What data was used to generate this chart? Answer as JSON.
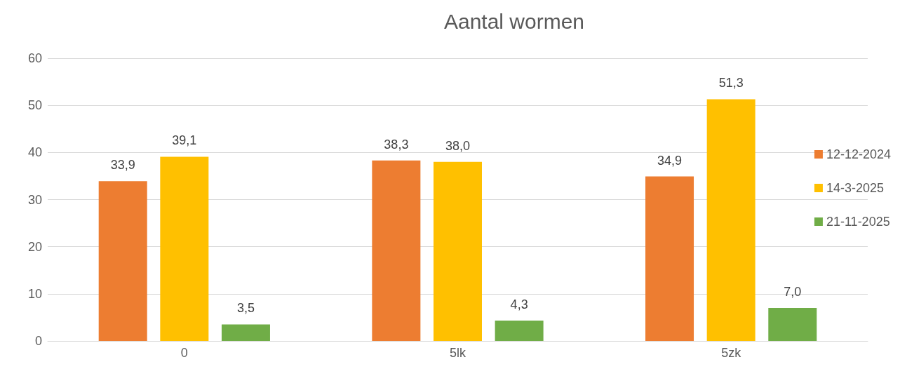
{
  "chart_data": {
    "type": "bar",
    "title": "Aantal wormen",
    "categories": [
      "0",
      "5lk",
      "5zk"
    ],
    "series": [
      {
        "name": "12-12-2024",
        "color": "#ed7d31",
        "values": [
          33.9,
          38.3,
          34.9
        ],
        "value_labels": [
          "33,9",
          "38,3",
          "34,9"
        ]
      },
      {
        "name": "14-3-2025",
        "color": "#ffc000",
        "values": [
          39.1,
          38.0,
          51.3
        ],
        "value_labels": [
          "39,1",
          "38,0",
          "51,3"
        ]
      },
      {
        "name": "21-11-2025",
        "color": "#70ad47",
        "values": [
          3.5,
          4.3,
          7.0
        ],
        "value_labels": [
          "3,5",
          "4,3",
          "7,0"
        ]
      }
    ],
    "ylim": [
      0,
      60
    ],
    "yticks": [
      0,
      10,
      20,
      30,
      40,
      50,
      60
    ],
    "grid": "y",
    "legend": "right"
  }
}
